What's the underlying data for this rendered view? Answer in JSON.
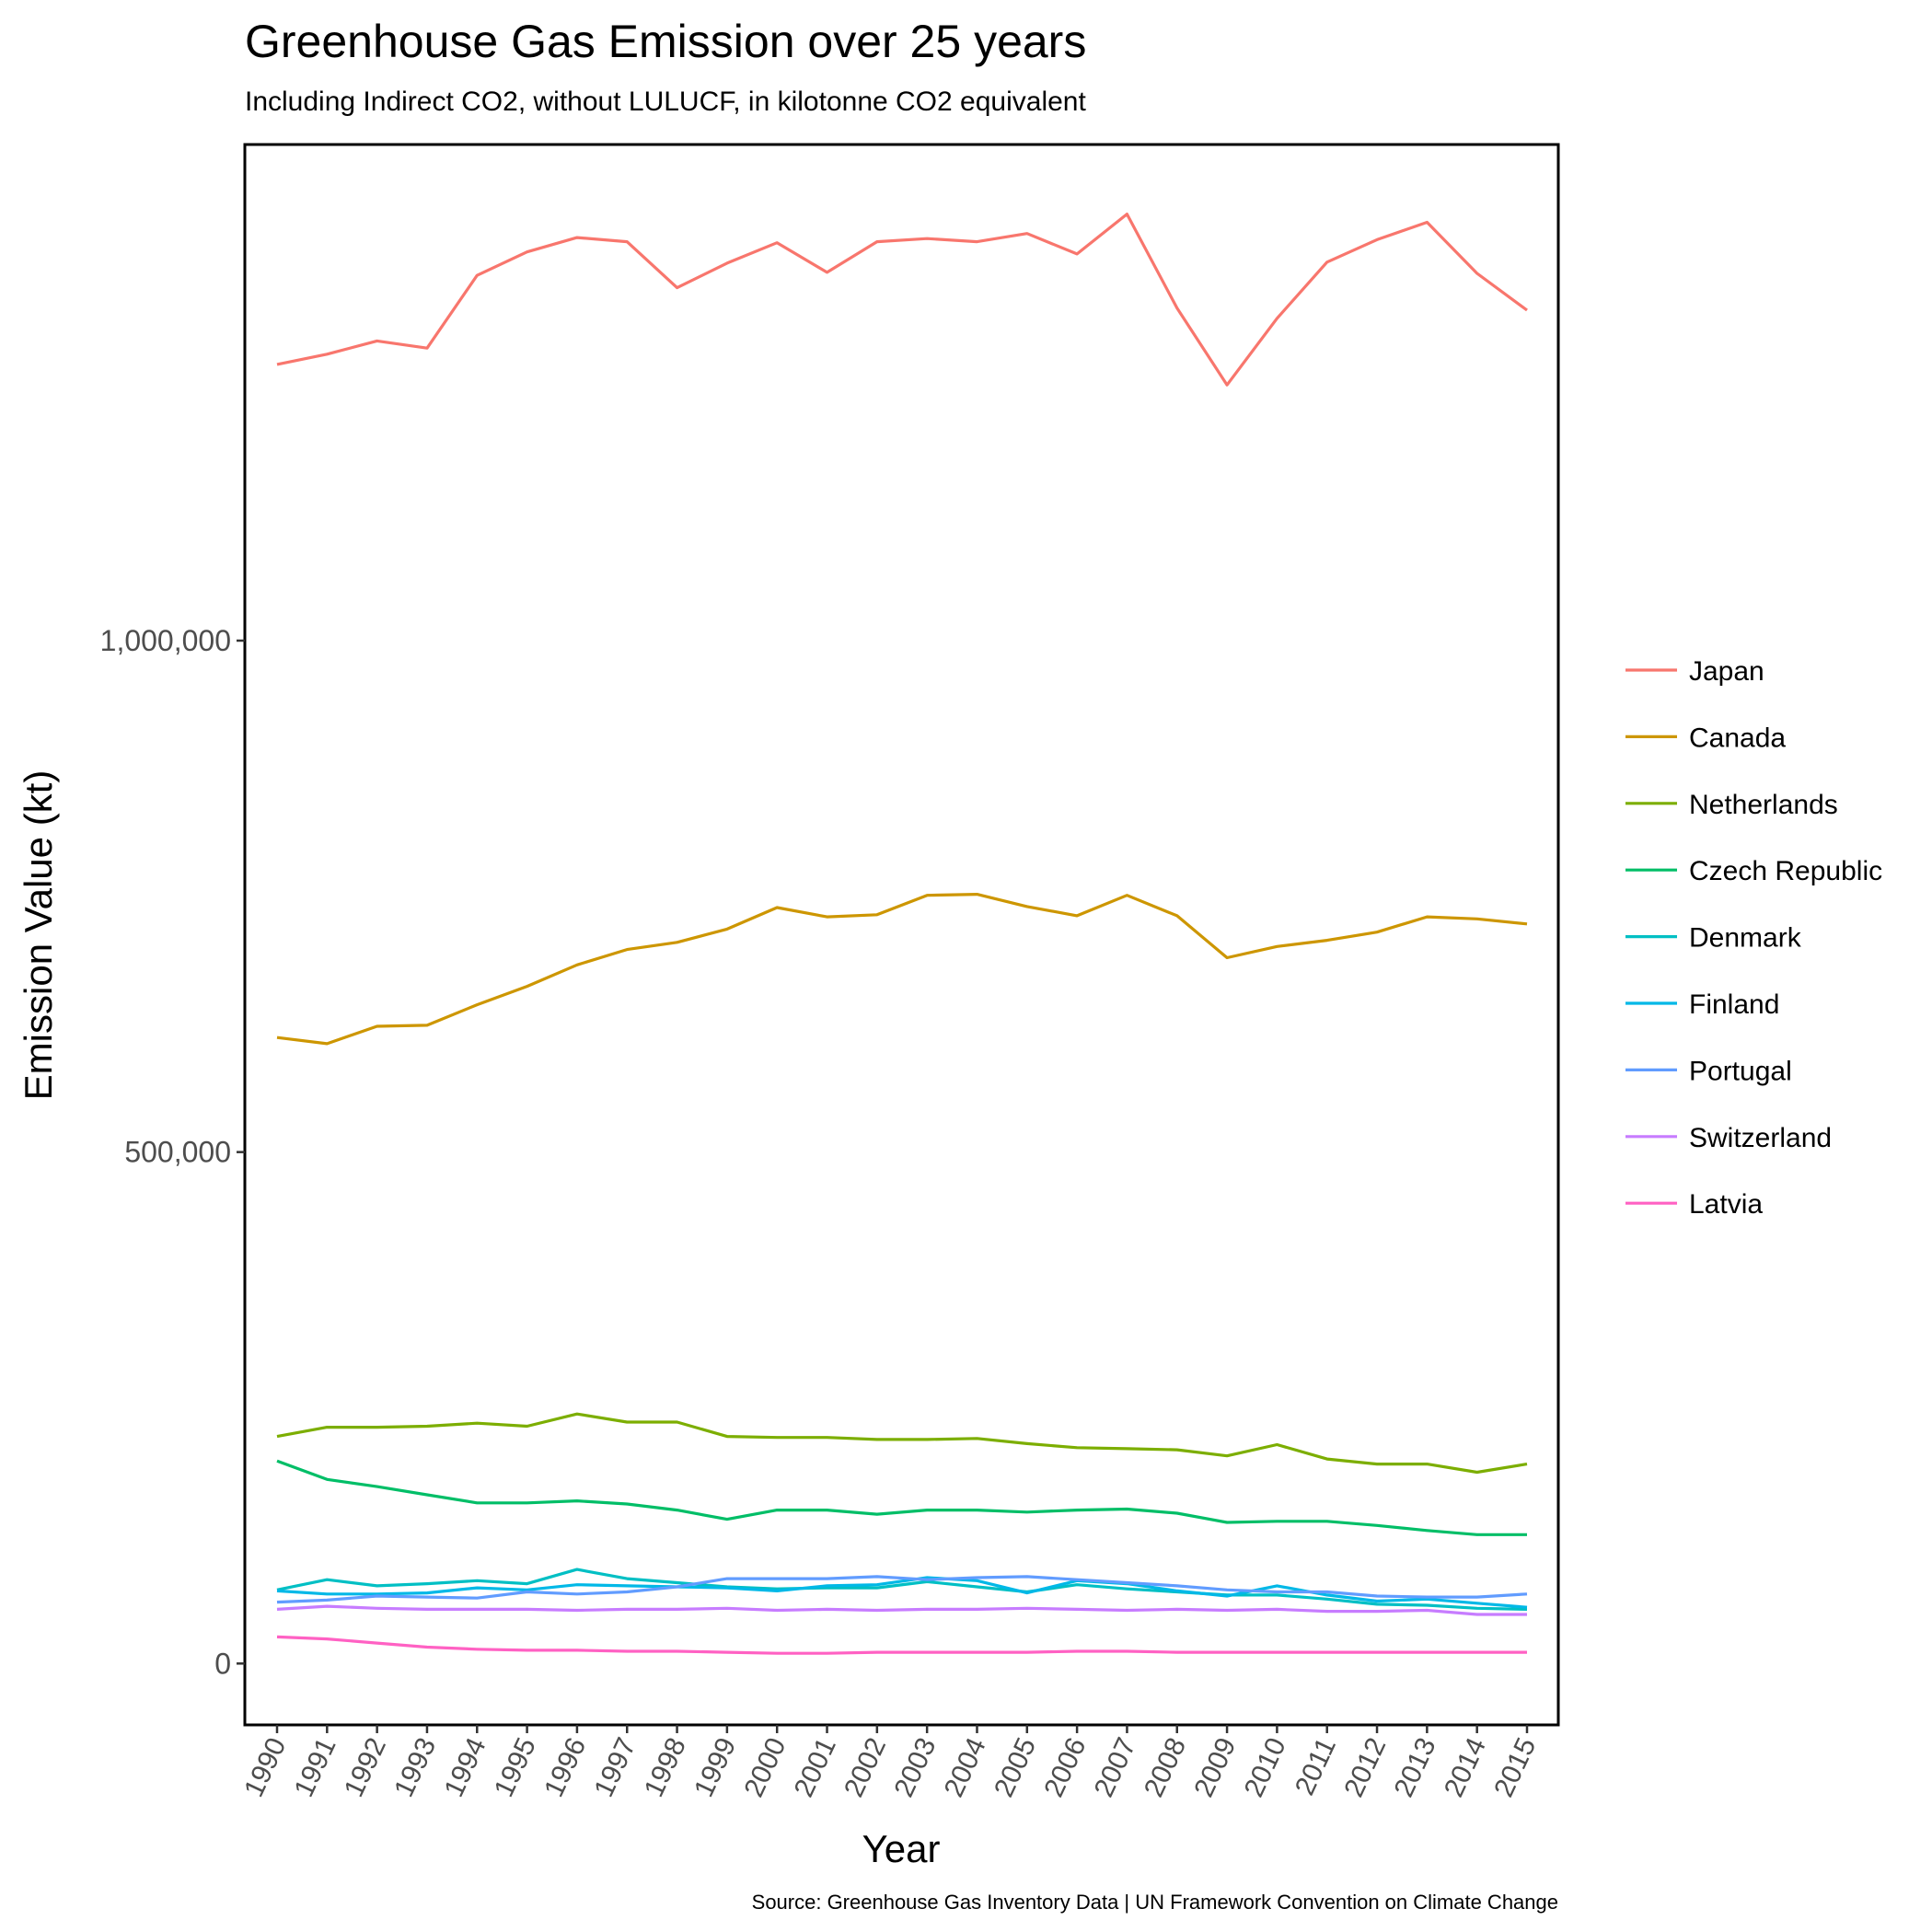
{
  "chart_data": {
    "type": "line",
    "title": "Greenhouse Gas Emission over 25 years",
    "subtitle": "Including Indirect CO2, without LULUCF, in kilotonne CO2 equivalent",
    "xlabel": "Year",
    "ylabel": "Emission Value (kt)",
    "caption": "Source: Greenhouse Gas Inventory Data | UN Framework Convention on Climate Change",
    "x": [
      1990,
      1991,
      1992,
      1993,
      1994,
      1995,
      1996,
      1997,
      1998,
      1999,
      2000,
      2001,
      2002,
      2003,
      2004,
      2005,
      2006,
      2007,
      2008,
      2009,
      2010,
      2011,
      2012,
      2013,
      2014,
      2015
    ],
    "x_tick_labels": [
      "1990",
      "1991",
      "1992",
      "1993",
      "1994",
      "1995",
      "1996",
      "1997",
      "1998",
      "1999",
      "2000",
      "2001",
      "2002",
      "2003",
      "2004",
      "2005",
      "2006",
      "2007",
      "2008",
      "2009",
      "2010",
      "2011",
      "2012",
      "2013",
      "2014",
      "2015"
    ],
    "y_ticks": [
      0,
      500000,
      1000000
    ],
    "y_tick_labels": [
      "0",
      "500,000",
      "1,000,000"
    ],
    "ylim": [
      -60000,
      1485000
    ],
    "grid": false,
    "legend_position": "right",
    "series": [
      {
        "name": "Japan",
        "color": "#F8766D",
        "values": [
          1270000,
          1280000,
          1293000,
          1286000,
          1357000,
          1380000,
          1394000,
          1390000,
          1345000,
          1369000,
          1389000,
          1360000,
          1390000,
          1393000,
          1390000,
          1398000,
          1378000,
          1417000,
          1325000,
          1250000,
          1315000,
          1370000,
          1392000,
          1409000,
          1359000,
          1323000
        ]
      },
      {
        "name": "Canada",
        "color": "#CD9600",
        "values": [
          612000,
          606000,
          623000,
          624000,
          644000,
          662000,
          683000,
          698000,
          705000,
          718000,
          739000,
          730000,
          732000,
          751000,
          752000,
          740000,
          731000,
          751000,
          731000,
          690000,
          701000,
          707000,
          715000,
          730000,
          728000,
          723000
        ]
      },
      {
        "name": "Netherlands",
        "color": "#7CAE00",
        "values": [
          222000,
          231000,
          231000,
          232000,
          235000,
          232000,
          244000,
          236000,
          236000,
          222000,
          221000,
          221000,
          219000,
          219000,
          220000,
          215000,
          211000,
          210000,
          209000,
          203000,
          214000,
          200000,
          195000,
          195000,
          187000,
          195000
        ]
      },
      {
        "name": "Czech Republic",
        "color": "#00BE67",
        "values": [
          198000,
          180000,
          173000,
          165000,
          157000,
          157000,
          159000,
          156000,
          150000,
          141000,
          150000,
          150000,
          146000,
          150000,
          150000,
          148000,
          150000,
          151000,
          147000,
          138000,
          139000,
          139000,
          135000,
          130000,
          126000,
          126000
        ]
      },
      {
        "name": "Denmark",
        "color": "#00BFC4",
        "values": [
          72000,
          82000,
          76000,
          78000,
          81000,
          78000,
          92000,
          83000,
          79000,
          75000,
          73000,
          74000,
          74000,
          80000,
          75000,
          70000,
          77000,
          73000,
          70000,
          67000,
          67000,
          63000,
          58000,
          57000,
          54000,
          53000
        ]
      },
      {
        "name": "Finland",
        "color": "#00B8E7",
        "values": [
          71000,
          68000,
          68000,
          69000,
          74000,
          72000,
          77000,
          76000,
          75000,
          74000,
          71000,
          76000,
          77000,
          84000,
          81000,
          69000,
          81000,
          78000,
          71000,
          66000,
          76000,
          67000,
          61000,
          63000,
          59000,
          55000
        ]
      },
      {
        "name": "Portugal",
        "color": "#619CFF",
        "values": [
          60000,
          62000,
          66000,
          65000,
          64000,
          70000,
          68000,
          70000,
          75000,
          83000,
          83000,
          83000,
          85000,
          82000,
          84000,
          85000,
          82000,
          79000,
          76000,
          72000,
          70000,
          70000,
          66000,
          65000,
          65000,
          68000
        ]
      },
      {
        "name": "Switzerland",
        "color": "#C77CFF",
        "values": [
          53000,
          56000,
          54000,
          53000,
          53000,
          53000,
          52000,
          53000,
          53000,
          54000,
          52000,
          53000,
          52000,
          53000,
          53000,
          54000,
          53000,
          52000,
          53000,
          52000,
          53000,
          51000,
          51000,
          52000,
          48000,
          48000
        ]
      },
      {
        "name": "Latvia",
        "color": "#FF61C3",
        "values": [
          26000,
          24000,
          20000,
          16000,
          14000,
          13000,
          13000,
          12000,
          12000,
          11000,
          10000,
          10000,
          11000,
          11000,
          11000,
          11000,
          12000,
          12000,
          11000,
          11000,
          11000,
          11000,
          11000,
          11000,
          11000,
          11000
        ]
      }
    ]
  }
}
